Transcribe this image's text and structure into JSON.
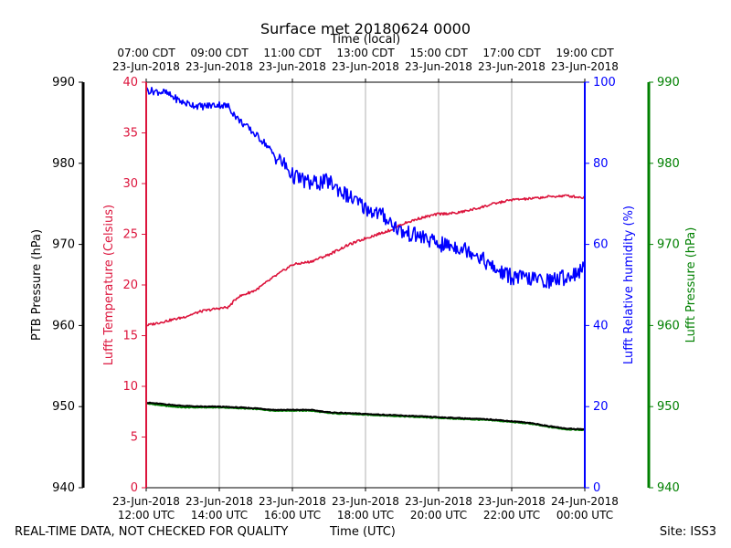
{
  "chart_data": {
    "type": "line",
    "title": "Surface met 20180624 0000",
    "top_axis_label": "Time (local)",
    "top_ticks": [
      {
        "time": "07:00 CDT",
        "date": "23-Jun-2018"
      },
      {
        "time": "09:00 CDT",
        "date": "23-Jun-2018"
      },
      {
        "time": "11:00 CDT",
        "date": "23-Jun-2018"
      },
      {
        "time": "13:00 CDT",
        "date": "23-Jun-2018"
      },
      {
        "time": "15:00 CDT",
        "date": "23-Jun-2018"
      },
      {
        "time": "17:00 CDT",
        "date": "23-Jun-2018"
      },
      {
        "time": "19:00 CDT",
        "date": "23-Jun-2018"
      }
    ],
    "bottom_axis_label": "Time (UTC)",
    "bottom_ticks": [
      {
        "date": "23-Jun-2018",
        "time": "12:00 UTC"
      },
      {
        "date": "23-Jun-2018",
        "time": "14:00 UTC"
      },
      {
        "date": "23-Jun-2018",
        "time": "16:00 UTC"
      },
      {
        "date": "23-Jun-2018",
        "time": "18:00 UTC"
      },
      {
        "date": "23-Jun-2018",
        "time": "20:00 UTC"
      },
      {
        "date": "23-Jun-2018",
        "time": "22:00 UTC"
      },
      {
        "date": "24-Jun-2018",
        "time": "00:00 UTC"
      }
    ],
    "x_range_hours_utc": [
      12,
      24
    ],
    "grid": true,
    "axes": {
      "ptb_pressure": {
        "label": "PTB Pressure (hPa)",
        "range": [
          940,
          990
        ],
        "ticks": [
          "940",
          "950",
          "960",
          "970",
          "980",
          "990"
        ],
        "color": "#000000"
      },
      "temperature": {
        "label": "Lufft Temperature (Celsius)",
        "range": [
          0,
          40
        ],
        "ticks": [
          "0",
          "5",
          "10",
          "15",
          "20",
          "25",
          "30",
          "35",
          "40"
        ],
        "color": "#dc143c"
      },
      "humidity": {
        "label": "Lufft Relative humidity (%)",
        "range": [
          0,
          100
        ],
        "ticks": [
          "0",
          "20",
          "40",
          "60",
          "80",
          "100"
        ],
        "color": "#0000ff"
      },
      "lufft_pressure": {
        "label": "Lufft Pressure (hPa)",
        "range": [
          940,
          990
        ],
        "ticks": [
          "940",
          "950",
          "960",
          "970",
          "980",
          "990"
        ],
        "color": "#008000"
      }
    },
    "series": [
      {
        "name": "Lufft Temperature",
        "axis": "temperature",
        "color": "#dc143c",
        "x": [
          12.0,
          12.5,
          13.0,
          13.5,
          14.0,
          14.25,
          14.5,
          15.0,
          15.5,
          15.75,
          16.0,
          16.5,
          17.0,
          17.5,
          18.0,
          18.5,
          18.75,
          19.0,
          19.5,
          20.0,
          20.5,
          21.0,
          21.5,
          22.0,
          22.5,
          23.0,
          23.5,
          24.0
        ],
        "values": [
          16.0,
          16.4,
          16.8,
          17.4,
          17.7,
          17.8,
          18.8,
          19.5,
          20.8,
          21.4,
          22.0,
          22.3,
          23.0,
          23.9,
          24.6,
          25.2,
          25.5,
          26.0,
          26.6,
          27.0,
          27.1,
          27.5,
          28.0,
          28.4,
          28.5,
          28.7,
          28.8,
          28.6
        ]
      },
      {
        "name": "Lufft Relative humidity",
        "axis": "humidity",
        "color": "#0000ff",
        "x": [
          12.0,
          12.5,
          13.0,
          13.5,
          14.0,
          14.25,
          14.5,
          14.75,
          15.0,
          15.25,
          15.5,
          15.75,
          16.0,
          16.5,
          17.0,
          17.5,
          18.0,
          18.5,
          18.75,
          19.0,
          19.5,
          20.0,
          20.5,
          21.0,
          21.25,
          21.5,
          22.0,
          22.5,
          23.0,
          23.5,
          24.0
        ],
        "values": [
          98.0,
          97.5,
          95.0,
          94.0,
          94.5,
          94.0,
          91.0,
          89.0,
          87.0,
          85.0,
          82.0,
          80.0,
          77.0,
          75.0,
          75.5,
          72.0,
          69.0,
          67.0,
          65.0,
          63.0,
          62.0,
          60.0,
          59.5,
          58.0,
          56.0,
          54.0,
          52.0,
          51.5,
          51.0,
          52.0,
          54.0
        ]
      },
      {
        "name": "PTB Pressure",
        "axis": "ptb_pressure",
        "color": "#000000",
        "x": [
          12.0,
          12.5,
          13.0,
          13.5,
          14.0,
          14.5,
          15.0,
          15.5,
          16.0,
          16.5,
          17.0,
          17.5,
          18.0,
          18.5,
          19.0,
          19.5,
          20.0,
          20.5,
          21.0,
          21.5,
          22.0,
          22.5,
          23.0,
          23.5,
          24.0
        ],
        "values": [
          950.5,
          950.3,
          950.1,
          950.0,
          950.0,
          949.9,
          949.8,
          949.6,
          949.6,
          949.6,
          949.3,
          949.2,
          949.1,
          949.0,
          948.9,
          948.8,
          948.7,
          948.6,
          948.5,
          948.4,
          948.2,
          948.0,
          947.6,
          947.3,
          947.2
        ]
      },
      {
        "name": "Lufft Pressure",
        "axis": "lufft_pressure",
        "color": "#008000",
        "x": [
          12.0,
          12.5,
          13.0,
          13.5,
          14.0,
          14.5,
          15.0,
          15.5,
          16.0,
          16.5,
          17.0,
          17.5,
          18.0,
          18.5,
          19.0,
          19.5,
          20.0,
          20.5,
          21.0,
          21.5,
          22.0,
          22.5,
          23.0,
          23.5,
          24.0
        ],
        "values": [
          950.4,
          950.1,
          949.9,
          949.9,
          949.9,
          949.8,
          949.7,
          949.5,
          949.5,
          949.5,
          949.2,
          949.1,
          949.0,
          948.9,
          948.8,
          948.7,
          948.6,
          948.5,
          948.4,
          948.3,
          948.1,
          947.9,
          947.5,
          947.2,
          947.1
        ]
      }
    ]
  },
  "footer": {
    "quality_note": "REAL-TIME DATA, NOT CHECKED FOR QUALITY",
    "x_label": "Time (UTC)",
    "site": "Site: ISS3"
  }
}
